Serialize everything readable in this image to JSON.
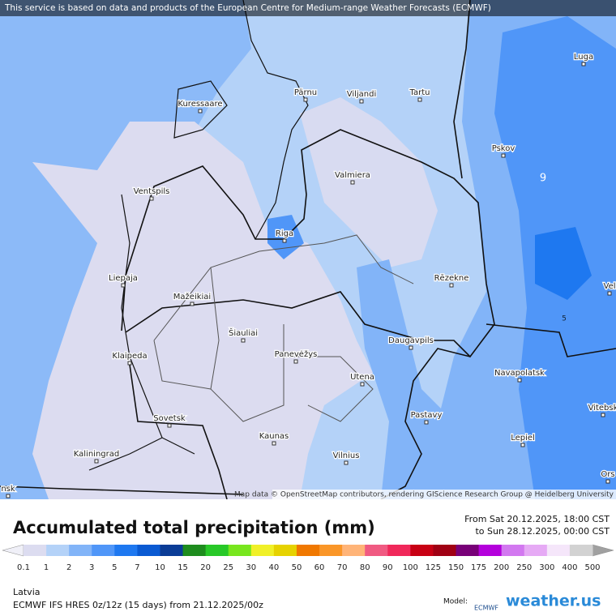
{
  "attribution": "This service is based on data and products of the European Centre for Medium-range Weather Forecasts (ECMWF)",
  "map_credit": "Map data © OpenStreetMap contributors, rendering GIScience Research Group @ Heidelberg University",
  "cities": [
    "Luga",
    "Pärnu",
    "Viljandi",
    "Tartu",
    "Kuressaare",
    "Pskov",
    "Valmiera",
    "Ventspils",
    "Riga",
    "Liepaja",
    "Rēzekne",
    "Mažeikiai",
    "Vel",
    "Šiauliai",
    "Klaipeda",
    "Daugavpils",
    "Panevėžys",
    "Utena",
    "Navapolatsk",
    "Vitebsk",
    "Pastavy",
    "Sovetsk",
    "Kaunas",
    "Lepiel",
    "Vilnius",
    "Kaliningrad",
    "Ors",
    "nsk"
  ],
  "contour_labels": [
    "9",
    "5"
  ],
  "title": "Accumulated total precipitation (mm)",
  "period_from": "From Sat 20.12.2025, 18:00 CST",
  "period_to": "to Sun 28.12.2025, 00:00 CST",
  "legend": {
    "ticks": [
      0.1,
      1,
      2,
      3,
      5,
      7,
      10,
      15,
      20,
      25,
      30,
      40,
      50,
      60,
      70,
      80,
      90,
      100,
      125,
      150,
      175,
      200,
      250,
      300,
      400,
      500
    ],
    "colors": [
      "#dcdcf0",
      "#b4d2f8",
      "#82b4f8",
      "#5096f8",
      "#1e78f0",
      "#0a5ad2",
      "#0a3c96",
      "#1e8c1e",
      "#28c828",
      "#78e61e",
      "#f0f028",
      "#e6d200",
      "#f07800",
      "#fa9628",
      "#ffb478",
      "#f05a82",
      "#f0285a",
      "#c80014",
      "#a00014",
      "#780078",
      "#b400dc",
      "#d278f0",
      "#e6aaf5",
      "#f5e6fa",
      "#d2d2d2"
    ],
    "under_color": "#f0f0f8",
    "over_color": "#a0a0a0"
  },
  "region": "Latvia",
  "model_info": "ECMWF IFS HRES 0z/12z (15 days) from 21.12.2025/00z",
  "model_label": "Model:",
  "model_logo": "ECMWF",
  "brand": "weather.us"
}
